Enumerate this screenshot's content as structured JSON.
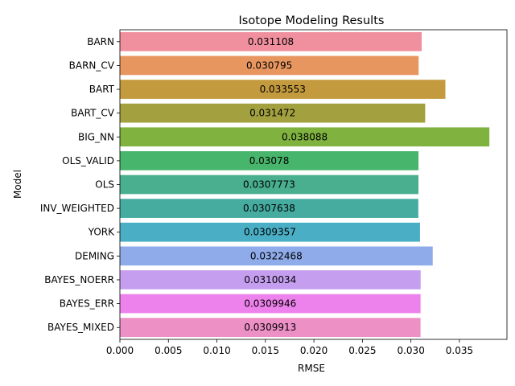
{
  "chart_data": {
    "type": "bar",
    "orientation": "horizontal",
    "title": "Isotope Modeling Results",
    "xlabel": "RMSE",
    "ylabel": "Model",
    "xlim": [
      0,
      0.0399
    ],
    "xticks": [
      0.0,
      0.005,
      0.01,
      0.015,
      0.02,
      0.025,
      0.03,
      0.035
    ],
    "xtick_labels": [
      "0.000",
      "0.005",
      "0.010",
      "0.015",
      "0.020",
      "0.025",
      "0.030",
      "0.035"
    ],
    "grid": false,
    "categories": [
      "BARN",
      "BARN_CV",
      "BART",
      "BART_CV",
      "BIG_NN",
      "OLS_VALID",
      "OLS",
      "INV_WEIGHTED",
      "YORK",
      "DEMING",
      "BAYES_NOERR",
      "BAYES_ERR",
      "BAYES_MIXED"
    ],
    "values": [
      0.031108,
      0.030795,
      0.033553,
      0.031472,
      0.038088,
      0.03078,
      0.0307773,
      0.0307638,
      0.0309357,
      0.0322468,
      0.0310034,
      0.0309946,
      0.0309913
    ],
    "value_labels": [
      "0.031108",
      "0.030795",
      "0.033553",
      "0.031472",
      "0.038088",
      "0.03078",
      "0.0307773",
      "0.0307638",
      "0.0309357",
      "0.0322468",
      "0.0310034",
      "0.0309946",
      "0.0309913"
    ],
    "colors": [
      "#f0909e",
      "#e8965f",
      "#c49a3f",
      "#a2a03f",
      "#7fb23f",
      "#47b56b",
      "#49af8e",
      "#46aca0",
      "#4aaec4",
      "#8fabea",
      "#c59ef0",
      "#ed82ec",
      "#ec90c6"
    ]
  }
}
